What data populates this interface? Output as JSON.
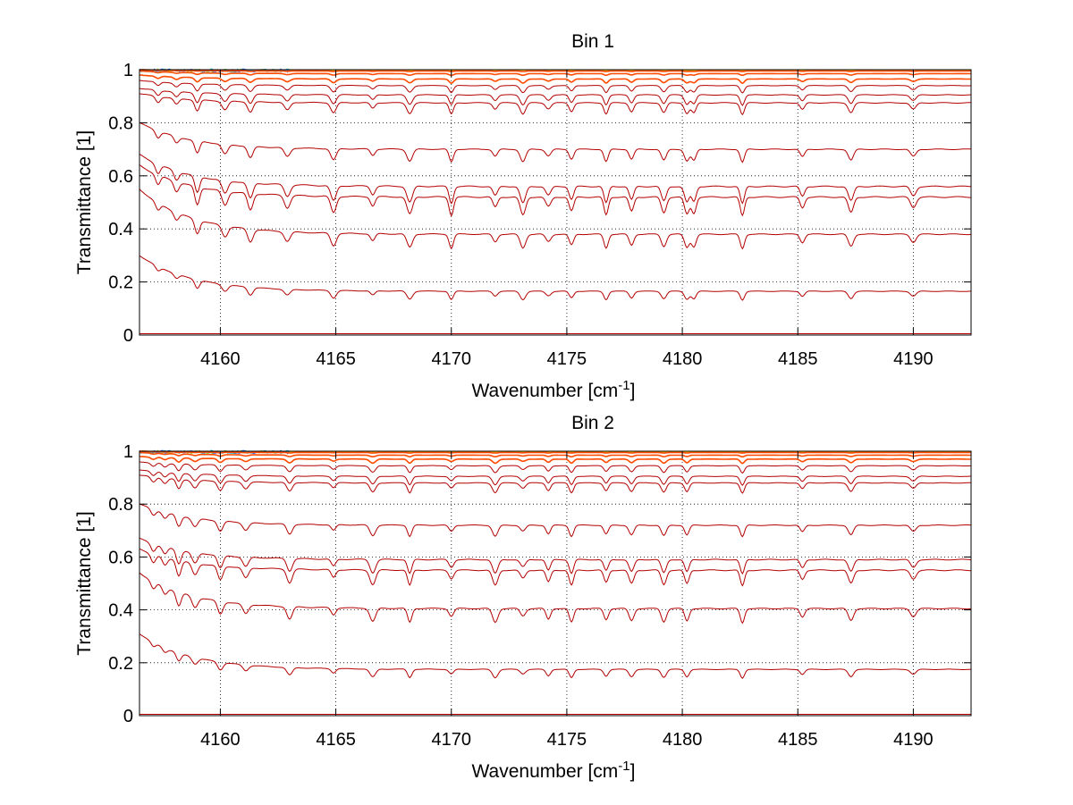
{
  "chart_data": [
    {
      "type": "line",
      "title": "Bin 1",
      "xlabel": "Wavenumber [cm",
      "xlabel_sup": "-1",
      "xlabel_end": "]",
      "ylabel": "Transmittance [1]",
      "xlim": [
        4156.5,
        4192.5
      ],
      "ylim": [
        0,
        1
      ],
      "xticks": [
        4160,
        4165,
        4170,
        4175,
        4180,
        4185,
        4190
      ],
      "yticks": [
        0,
        0.2,
        0.4,
        0.6,
        0.8,
        1
      ],
      "ytick_labels": [
        "0",
        "0.2",
        "0.4",
        "0.6",
        "0.8",
        "1"
      ],
      "grid": true,
      "line_color": "#b40000",
      "near_one_colors": [
        "#ff6a00",
        "#ffa500",
        "#ffd200",
        "#8fdc3a",
        "#21c4d6",
        "#2a73ff"
      ],
      "absorption_lines": [
        4157.3,
        4158.1,
        4159.0,
        4160.2,
        4161.3,
        4162.9,
        4164.9,
        4166.6,
        4168.2,
        4170.0,
        4171.9,
        4173.1,
        4174.2,
        4175.2,
        4176.7,
        4177.8,
        4179.2,
        4180.2,
        4180.5,
        4182.6,
        4185.2,
        4187.3,
        4190.0
      ],
      "series": [
        {
          "level": 0.995,
          "start": 1.0,
          "depth": 0.004
        },
        {
          "level": 0.985,
          "start": 0.995,
          "depth": 0.012
        },
        {
          "level": 0.965,
          "start": 0.98,
          "depth": 0.03
        },
        {
          "level": 0.94,
          "start": 0.96,
          "depth": 0.05
        },
        {
          "level": 0.905,
          "start": 0.93,
          "depth": 0.07
        },
        {
          "level": 0.875,
          "start": 0.91,
          "depth": 0.08
        },
        {
          "level": 0.7,
          "start": 0.8,
          "depth": 0.09
        },
        {
          "level": 0.56,
          "start": 0.68,
          "depth": 0.12
        },
        {
          "level": 0.52,
          "start": 0.64,
          "depth": 0.13
        },
        {
          "level": 0.38,
          "start": 0.55,
          "depth": 0.1
        },
        {
          "level": 0.165,
          "start": 0.3,
          "depth": 0.06
        },
        {
          "level": 0.005,
          "start": 0.005,
          "depth": 0.0
        }
      ]
    },
    {
      "type": "line",
      "title": "Bin 2",
      "xlabel": "Wavenumber [cm",
      "xlabel_sup": "-1",
      "xlabel_end": "]",
      "ylabel": "Transmittance [1]",
      "xlim": [
        4156.5,
        4192.5
      ],
      "ylim": [
        0,
        1
      ],
      "xticks": [
        4160,
        4165,
        4170,
        4175,
        4180,
        4185,
        4190
      ],
      "yticks": [
        0,
        0.2,
        0.4,
        0.6,
        0.8,
        1
      ],
      "ytick_labels": [
        "0",
        "0.2",
        "0.4",
        "0.6",
        "0.8",
        "1"
      ],
      "grid": true,
      "line_color": "#b40000",
      "near_one_colors": [
        "#ff6a00",
        "#ffa500",
        "#ffd200",
        "#8fdc3a",
        "#21c4d6",
        "#2a73ff"
      ],
      "absorption_lines": [
        4157.1,
        4157.6,
        4158.2,
        4158.9,
        4160.0,
        4161.1,
        4163.0,
        4164.9,
        4166.6,
        4168.2,
        4170.0,
        4171.9,
        4173.1,
        4174.2,
        4175.2,
        4176.7,
        4177.8,
        4179.2,
        4180.2,
        4182.6,
        4185.2,
        4187.3,
        4190.0
      ],
      "series": [
        {
          "level": 0.995,
          "start": 1.0,
          "depth": 0.004
        },
        {
          "level": 0.985,
          "start": 0.995,
          "depth": 0.012
        },
        {
          "level": 0.97,
          "start": 0.98,
          "depth": 0.03
        },
        {
          "level": 0.945,
          "start": 0.96,
          "depth": 0.05
        },
        {
          "level": 0.905,
          "start": 0.93,
          "depth": 0.06
        },
        {
          "level": 0.88,
          "start": 0.91,
          "depth": 0.07
        },
        {
          "level": 0.72,
          "start": 0.8,
          "depth": 0.08
        },
        {
          "level": 0.59,
          "start": 0.67,
          "depth": 0.1
        },
        {
          "level": 0.55,
          "start": 0.63,
          "depth": 0.11
        },
        {
          "level": 0.405,
          "start": 0.54,
          "depth": 0.1
        },
        {
          "level": 0.175,
          "start": 0.31,
          "depth": 0.06
        },
        {
          "level": 0.005,
          "start": 0.005,
          "depth": 0.0
        }
      ]
    }
  ]
}
